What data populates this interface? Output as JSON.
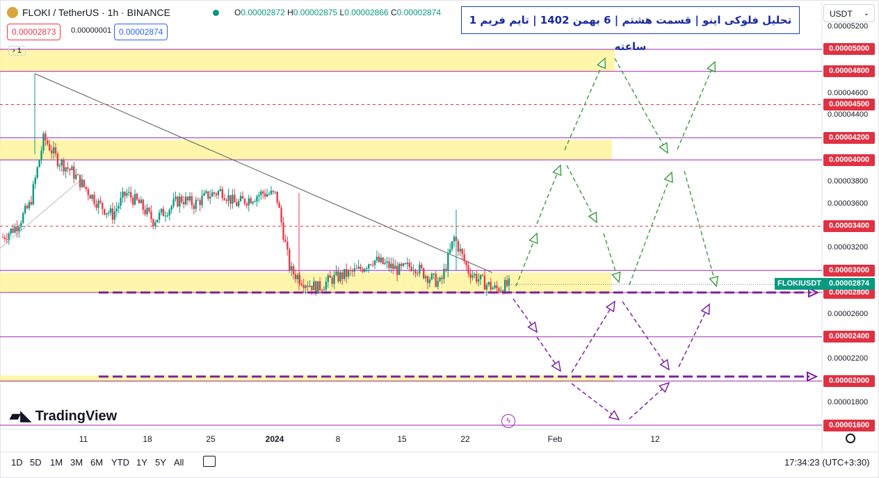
{
  "header": {
    "symbol": "FLOKI / TetherUS · 1h · BINANCE",
    "open_key": "O",
    "open": "0.00002872",
    "high_key": "H",
    "high": "0.00002875",
    "low_key": "L",
    "low": "0.00002866",
    "close_key": "C",
    "close": "0.00002874",
    "sell_price": "0.00002873",
    "spread": "0.00000001",
    "buy_price": "0.00002874",
    "layers_count": "1"
  },
  "title_text": "تحلیل فلوکی اینو | قسمت هشتم | 6 بهمن 1402 | تایم فریم 1 ساعته",
  "currency_dropdown": "USDT",
  "logo_text": "TradingView",
  "symbol_tag": "FLOKIUSDT",
  "current_price_tag": "0.00002874",
  "time": "17:34:23",
  "timezone": "(UTC+3:30)",
  "timeframes": [
    "1D",
    "5D",
    "1M",
    "3M",
    "6M",
    "YTD",
    "1Y",
    "5Y",
    "All"
  ],
  "colors": {
    "up": "#089981",
    "down": "#f23645",
    "zone_fill": "#fff59d",
    "level_line": "#9c27b0",
    "dashed_red": "#e03142",
    "green_arrow": "#43a047",
    "purple_arrow": "#7b1fa2",
    "price_tag_bg": "#e03142"
  },
  "chart_data": {
    "type": "candlestick",
    "title": "",
    "x_axis_labels": [
      "11",
      "18",
      "25",
      "2024",
      "8",
      "15",
      "22",
      "Feb",
      "12"
    ],
    "y_axis_labels": [
      "0.00005200",
      "0.00005000",
      "0.00004800",
      "0.00004600",
      "0.00004500",
      "0.00004400",
      "0.00004200",
      "0.00004000",
      "0.00003800",
      "0.00003600",
      "0.00003400",
      "0.00003200",
      "0.00003000",
      "0.00002874",
      "0.00002800",
      "0.00002600",
      "0.00002400",
      "0.00002200",
      "0.00002000",
      "0.00001800",
      "0.00001600"
    ],
    "highlighted_levels": [
      "0.00005000",
      "0.00004800",
      "0.00004500",
      "0.00004200",
      "0.00004000",
      "0.00003400",
      "0.00003000",
      "0.00002800",
      "0.00002400",
      "0.00002000",
      "0.00001600"
    ],
    "ylim": [
      1.57e-05,
      5.26e-05
    ],
    "supply_demand_zones": [
      [
        4.8e-05,
        5e-05
      ],
      [
        4e-05,
        4.18e-05
      ],
      [
        2.8e-05,
        2.98e-05
      ],
      [
        1.99e-05,
        2.05e-05
      ]
    ],
    "descending_trendline": [
      [
        "Dec 5",
        4.78e-05
      ],
      [
        "Jan 25",
        2.98e-05
      ]
    ],
    "key_levels_dashed": [
      4.5e-05,
      3.4e-05
    ],
    "support_levels_bold": [
      2.8e-05,
      2.04e-05
    ],
    "price_path_close": [
      3.3e-05,
      3.4e-05,
      3.6e-05,
      4.2e-05,
      4e-05,
      3.9e-05,
      3.75e-05,
      3.6e-05,
      3.5e-05,
      3.7e-05,
      3.6e-05,
      3.45e-05,
      3.55e-05,
      3.65e-05,
      3.6e-05,
      3.68e-05,
      3.72e-05,
      3.6e-05,
      3.65e-05,
      3.7e-05,
      3.68e-05,
      3e-05,
      2.9e-05,
      2.84e-05,
      2.92e-05,
      2.96e-05,
      3e-05,
      3.1e-05,
      3.05e-05,
      3e-05,
      3.05e-05,
      2.95e-05,
      2.88e-05,
      3.3e-05,
      3e-05,
      2.9e-05,
      2.83e-05,
      2.87e-05
    ]
  }
}
